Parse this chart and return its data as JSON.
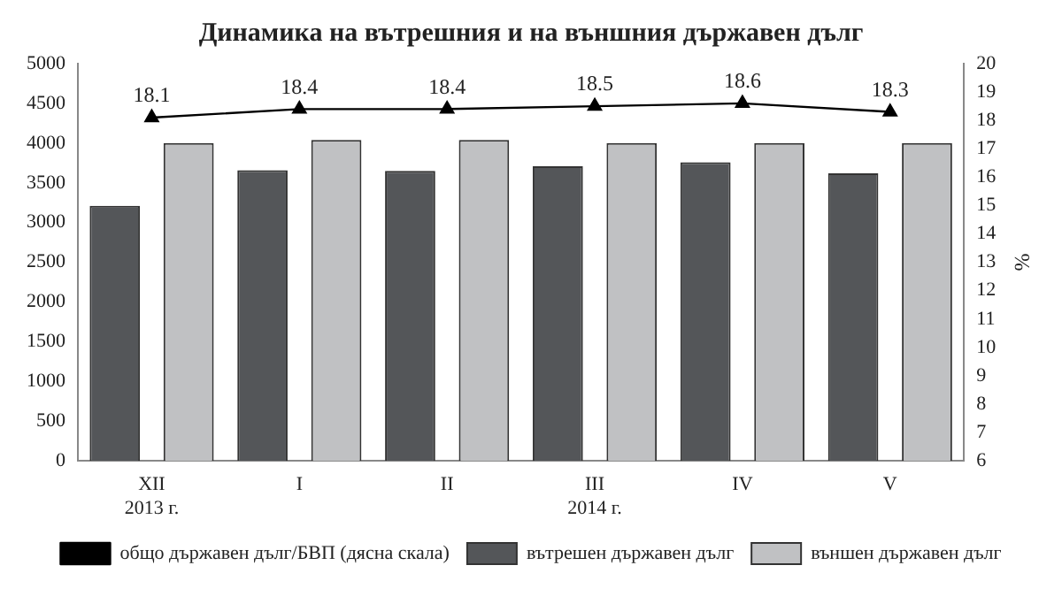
{
  "chart_data": {
    "type": "bar",
    "title": "Динамика на вътрешния и на външния държавен дълг",
    "categories": [
      "XII\n2013 г.",
      "I",
      "II",
      "III\n2014 г.",
      "IV",
      "V"
    ],
    "series": [
      {
        "name": "вътрешен държавен дълг",
        "color": "#545659",
        "values": [
          3210,
          3660,
          3650,
          3710,
          3760,
          3620
        ]
      },
      {
        "name": "външен държавен дълг",
        "color": "#c0c1c3",
        "values": [
          4000,
          4040,
          4040,
          4000,
          4000,
          4000
        ]
      },
      {
        "name": "общо държавен дълг/БВП (дясна скала)",
        "type": "line",
        "axis": "y2",
        "color": "#000000",
        "marker": "triangle",
        "values": [
          18.1,
          18.4,
          18.4,
          18.5,
          18.6,
          18.3
        ],
        "value_labels": [
          "18.1",
          "18.4",
          "18.4",
          "18.5",
          "18.6",
          "18.3"
        ]
      }
    ],
    "ylim": [
      0,
      5000
    ],
    "yticks": [
      0,
      500,
      1000,
      1500,
      2000,
      2500,
      3000,
      3500,
      4000,
      4500,
      5000
    ],
    "y2lim": [
      6,
      20
    ],
    "y2ticks": [
      6,
      7,
      8,
      9,
      10,
      11,
      12,
      13,
      14,
      15,
      16,
      17,
      18,
      19,
      20
    ],
    "y2label": "%",
    "grid": false,
    "legend": "bottom"
  }
}
